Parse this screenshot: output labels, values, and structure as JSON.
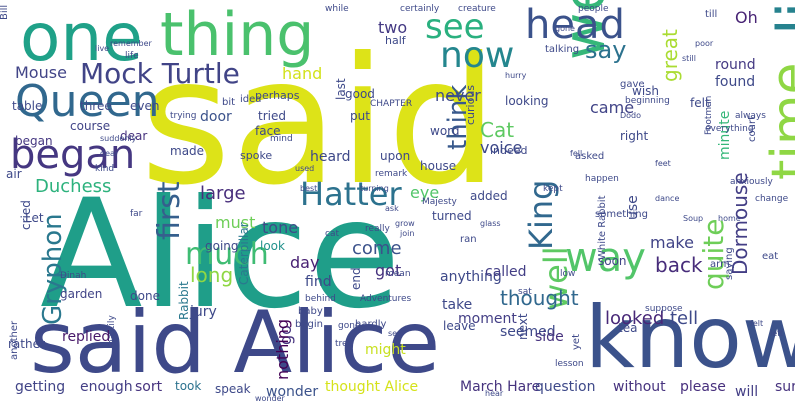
{
  "words": [
    {
      "text": "said",
      "color": "#dde318"
    },
    {
      "text": "Alice",
      "color": "#1f9e89"
    },
    {
      "text": "said Alice",
      "color": "#3e4989"
    },
    {
      "text": "know",
      "color": "#3b528b"
    },
    {
      "text": "little",
      "color": "#26828e"
    },
    {
      "text": "went",
      "color": "#35b779"
    },
    {
      "text": "one",
      "color": "#1fa188"
    },
    {
      "text": "thing",
      "color": "#4ac16d"
    },
    {
      "text": "time",
      "color": "#8fd744"
    },
    {
      "text": "Queen",
      "color": "#31688e"
    },
    {
      "text": "began",
      "color": "#453781"
    },
    {
      "text": "Hatter",
      "color": "#2c728e"
    },
    {
      "text": "way",
      "color": "#52c569"
    },
    {
      "text": "head",
      "color": "#3b528b"
    },
    {
      "text": "see",
      "color": "#2ab07f"
    },
    {
      "text": "now",
      "color": "#24868e"
    },
    {
      "text": "King",
      "color": "#31688e"
    },
    {
      "text": "much",
      "color": "#3fbc73"
    },
    {
      "text": "well",
      "color": "#5ec962"
    },
    {
      "text": "quite",
      "color": "#6ece58"
    },
    {
      "text": "Mock Turtle",
      "color": "#414487"
    },
    {
      "text": "first",
      "color": "#355f8d"
    },
    {
      "text": "think",
      "color": "#38598c"
    },
    {
      "text": "Gryphon",
      "color": "#2a788e"
    },
    {
      "text": "say",
      "color": "#2c728e"
    },
    {
      "text": "Dormouse",
      "color": "#433e85"
    },
    {
      "text": "thought",
      "color": "#31688e"
    },
    {
      "text": "back",
      "color": "#472c7a"
    },
    {
      "text": "come",
      "color": "#3b528b"
    },
    {
      "text": "looked",
      "color": "#482878"
    },
    {
      "text": "tell",
      "color": "#3e4989"
    },
    {
      "text": "Duchess",
      "color": "#2db27d"
    },
    {
      "text": "Cat",
      "color": "#5ec962"
    },
    {
      "text": "voice",
      "color": "#3e4989"
    },
    {
      "text": "long",
      "color": "#8fd744"
    },
    {
      "text": "got",
      "color": "#46327e"
    },
    {
      "text": "Mouse",
      "color": "#414487"
    },
    {
      "text": "great",
      "color": "#aadc32"
    },
    {
      "text": "round",
      "color": "#443983"
    },
    {
      "text": "found",
      "color": "#3e4989"
    },
    {
      "text": "go",
      "color": "#46327e"
    },
    {
      "text": "nothing",
      "color": "#440154"
    },
    {
      "text": "large",
      "color": "#472d7b"
    },
    {
      "text": "must",
      "color": "#6ece58"
    },
    {
      "text": "make",
      "color": "#414487"
    },
    {
      "text": "tone",
      "color": "#3e4a89"
    },
    {
      "text": "day",
      "color": "#482173"
    },
    {
      "text": "hand",
      "color": "#d2e21b"
    },
    {
      "text": "never",
      "color": "#3e4989"
    },
    {
      "text": "two",
      "color": "#443983"
    },
    {
      "text": "eye",
      "color": "#52c569"
    },
    {
      "text": "Oh",
      "color": "#482475"
    },
    {
      "text": "minute",
      "color": "#35b779"
    },
    {
      "text": "came",
      "color": "#414487"
    },
    {
      "text": "replied",
      "color": "#48186a"
    },
    {
      "text": "moment",
      "color": "#433e85"
    },
    {
      "text": "might",
      "color": "#c8e020"
    },
    {
      "text": "seemed",
      "color": "#3e4989"
    },
    {
      "text": "anything",
      "color": "#3e4989"
    },
    {
      "text": "March Hare",
      "color": "#46337e"
    },
    {
      "text": "thought Alice",
      "color": "#d5e21a"
    },
    {
      "text": "question",
      "color": "#3e4989"
    },
    {
      "text": "without",
      "color": "#46327e"
    },
    {
      "text": "please",
      "color": "#472f7d"
    },
    {
      "text": "sure",
      "color": "#46327e"
    },
    {
      "text": "will",
      "color": "#433e85"
    },
    {
      "text": "wonder",
      "color": "#3b528b"
    },
    {
      "text": "speak",
      "color": "#3e4989"
    },
    {
      "text": "took",
      "color": "#2c728e"
    },
    {
      "text": "sort",
      "color": "#46327e"
    },
    {
      "text": "enough",
      "color": "#433e85"
    },
    {
      "text": "getting",
      "color": "#414487"
    },
    {
      "text": "rather",
      "color": "#3e4989"
    },
    {
      "text": "Caterpillar",
      "color": "#2a788e"
    },
    {
      "text": "garden",
      "color": "#414487"
    },
    {
      "text": "going",
      "color": "#3e4989"
    },
    {
      "text": "look",
      "color": "#21918c"
    },
    {
      "text": "door",
      "color": "#3b528b"
    },
    {
      "text": "tried",
      "color": "#3e4989"
    },
    {
      "text": "face",
      "color": "#3e4989"
    },
    {
      "text": "made",
      "color": "#3e4989"
    },
    {
      "text": "course",
      "color": "#414487"
    },
    {
      "text": "dear",
      "color": "#46327e"
    },
    {
      "text": "heard",
      "color": "#3e4989"
    },
    {
      "text": "put",
      "color": "#3e4989"
    },
    {
      "text": "last",
      "color": "#3e4989"
    },
    {
      "text": "word",
      "color": "#3e4989"
    },
    {
      "text": "upon",
      "color": "#3e4989"
    },
    {
      "text": "house",
      "color": "#3e4989"
    },
    {
      "text": "added",
      "color": "#3e4989"
    },
    {
      "text": "turned",
      "color": "#3e4989"
    },
    {
      "text": "end",
      "color": "#3e4989"
    },
    {
      "text": "find",
      "color": "#3e4989"
    },
    {
      "text": "called",
      "color": "#433e85"
    },
    {
      "text": "soon",
      "color": "#414487"
    },
    {
      "text": "side",
      "color": "#46327e"
    },
    {
      "text": "take",
      "color": "#3e4989"
    },
    {
      "text": "leave",
      "color": "#3e4989"
    },
    {
      "text": "jury",
      "color": "#3e4989"
    },
    {
      "text": "Rabbit",
      "color": "#2a788e"
    },
    {
      "text": "began",
      "color": "#453781"
    },
    {
      "text": "next",
      "color": "#3e4989"
    },
    {
      "text": "tea",
      "color": "#3e4989"
    },
    {
      "text": "use",
      "color": "#3e4989"
    },
    {
      "text": "right",
      "color": "#3e4989"
    },
    {
      "text": "felt",
      "color": "#3e4989"
    },
    {
      "text": "wish",
      "color": "#3e4989"
    },
    {
      "text": "half",
      "color": "#3e4989"
    },
    {
      "text": "perhaps",
      "color": "#3e4989"
    },
    {
      "text": "looking",
      "color": "#3e4989"
    },
    {
      "text": "even",
      "color": "#3e4989"
    },
    {
      "text": "three",
      "color": "#3e4989"
    },
    {
      "text": "table",
      "color": "#3e4989"
    },
    {
      "text": "good",
      "color": "#3e4989"
    },
    {
      "text": "indeed",
      "color": "#3e4989"
    },
    {
      "text": "curious",
      "color": "#3e4989"
    },
    {
      "text": "asked",
      "color": "#3e4989"
    },
    {
      "text": "White Rabbit",
      "color": "#3e4989"
    },
    {
      "text": "something",
      "color": "#3e4989"
    },
    {
      "text": "saying",
      "color": "#3e4989"
    },
    {
      "text": "arm",
      "color": "#3e4989"
    },
    {
      "text": "court",
      "color": "#3e4989"
    },
    {
      "text": "spoke",
      "color": "#3e4989"
    },
    {
      "text": "Let",
      "color": "#3e4989"
    },
    {
      "text": "cried",
      "color": "#3e4989"
    },
    {
      "text": "air",
      "color": "#3e4989"
    },
    {
      "text": "done",
      "color": "#3e4989"
    },
    {
      "text": "begin",
      "color": "#3e4989"
    },
    {
      "text": "ran",
      "color": "#3e4989"
    },
    {
      "text": "gave",
      "color": "#3e4989"
    },
    {
      "text": "talking",
      "color": "#3e4989"
    },
    {
      "text": "idea",
      "color": "#3e4989"
    },
    {
      "text": "bit",
      "color": "#3e4989"
    },
    {
      "text": "hardly",
      "color": "#3e4989"
    },
    {
      "text": "another",
      "color": "#3e4989"
    },
    {
      "text": "baby",
      "color": "#3e4989"
    },
    {
      "text": "yet",
      "color": "#3e4989"
    },
    {
      "text": "till",
      "color": "#3e4989"
    },
    {
      "text": "Bill",
      "color": "#3e4989"
    },
    {
      "text": "eat",
      "color": "#3e4989"
    },
    {
      "text": "CHAPTER",
      "color": "#3e4989"
    },
    {
      "text": "people",
      "color": "#3e4989"
    },
    {
      "text": "creature",
      "color": "#3e4989"
    },
    {
      "text": "certainly",
      "color": "#3e4989"
    },
    {
      "text": "while",
      "color": "#3e4989"
    },
    {
      "text": "always",
      "color": "#3e4989"
    },
    {
      "text": "remark",
      "color": "#3e4989"
    },
    {
      "text": "Majesty",
      "color": "#3e4989"
    },
    {
      "text": "beginning",
      "color": "#3e4989"
    },
    {
      "text": "anxiously",
      "color": "#3e4989"
    },
    {
      "text": "Adventures",
      "color": "#3e4989"
    },
    {
      "text": "suppose",
      "color": "#3e4989"
    },
    {
      "text": "everything",
      "color": "#3e4989"
    },
    {
      "text": "trying",
      "color": "#3e4989"
    },
    {
      "text": "change",
      "color": "#3e4989"
    },
    {
      "text": "behind",
      "color": "#3e4989"
    },
    {
      "text": "Dinah",
      "color": "#3e4989"
    },
    {
      "text": "hastily",
      "color": "#3e4989"
    },
    {
      "text": "lesson",
      "color": "#3e4989"
    },
    {
      "text": "kept",
      "color": "#3e4989"
    },
    {
      "text": "mean",
      "color": "#3e4989"
    },
    {
      "text": "happen",
      "color": "#3e4989"
    },
    {
      "text": "low",
      "color": "#3e4989"
    },
    {
      "text": "tree",
      "color": "#3e4989"
    },
    {
      "text": "mind",
      "color": "#3e4989"
    },
    {
      "text": "kind",
      "color": "#3e4989"
    },
    {
      "text": "life",
      "color": "#3e4989"
    },
    {
      "text": "sat",
      "color": "#3e4989"
    },
    {
      "text": "Footman",
      "color": "#3e4989"
    },
    {
      "text": "gone",
      "color": "#3e4989"
    },
    {
      "text": "wonder",
      "color": "#3e4989"
    },
    {
      "text": "really",
      "color": "#3e4989"
    },
    {
      "text": "cat",
      "color": "#3e4989"
    },
    {
      "text": "fell",
      "color": "#3e4989"
    },
    {
      "text": "far",
      "color": "#3e4989"
    },
    {
      "text": "sea",
      "color": "#3e4989"
    },
    {
      "text": "remember",
      "color": "#3e4989"
    },
    {
      "text": "feet",
      "color": "#3e4989"
    },
    {
      "text": "dear",
      "color": "#3e4989"
    },
    {
      "text": "best",
      "color": "#3e4989"
    },
    {
      "text": "used",
      "color": "#3e4989"
    },
    {
      "text": "hear",
      "color": "#3e4989"
    },
    {
      "text": "suddenly",
      "color": "#3e4989"
    },
    {
      "text": "dance",
      "color": "#3e4989"
    },
    {
      "text": "Soup",
      "color": "#3e4989"
    },
    {
      "text": "gone",
      "color": "#3e4989"
    },
    {
      "text": "poor",
      "color": "#3e4989"
    },
    {
      "text": "still",
      "color": "#3e4989"
    },
    {
      "text": "home",
      "color": "#3e4989"
    },
    {
      "text": "ask",
      "color": "#3e4989"
    },
    {
      "text": "join",
      "color": "#3e4989"
    },
    {
      "text": "Dodo",
      "color": "#3e4989"
    },
    {
      "text": "glass",
      "color": "#3e4989"
    },
    {
      "text": "hurry",
      "color": "#3e4989"
    },
    {
      "text": "grow",
      "color": "#3e4989"
    },
    {
      "text": "live",
      "color": "#3e4989"
    },
    {
      "text": "left",
      "color": "#3e4989"
    },
    {
      "text": "turning",
      "color": "#3e4989"
    },
    {
      "text": "felt",
      "color": "#3e4989"
    }
  ]
}
